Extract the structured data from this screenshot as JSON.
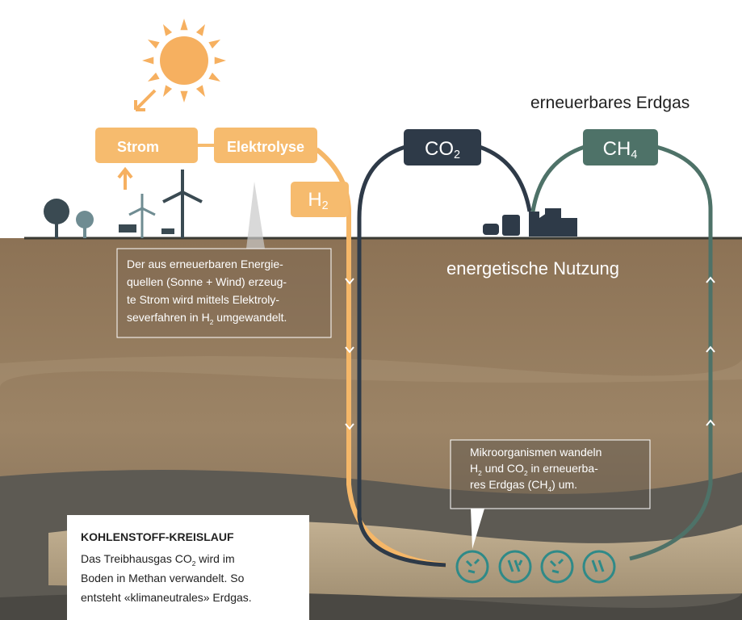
{
  "labels": {
    "strom": "Strom",
    "elektrolyse": "Elektrolyse",
    "h2": [
      "H",
      "2"
    ],
    "co2": [
      "CO",
      "2"
    ],
    "ch4": [
      "CH",
      "4"
    ],
    "erdgas": "erneuerbares Erdgas",
    "nutzung": "energetische Nutzung"
  },
  "callout_electrolysis": {
    "lines": [
      [
        "Der aus erneuerbaren Energie-"
      ],
      [
        "quellen (Sonne + Wind) erzeug-"
      ],
      [
        "te Strom wird mittels Elektroly-"
      ],
      [
        "severfahren in H",
        "2",
        " umgewandelt."
      ]
    ]
  },
  "callout_microbes": {
    "lines": [
      [
        "Mikroorganismen wandeln"
      ],
      [
        "H",
        "2",
        " und CO",
        "2",
        " in erneuerba-"
      ],
      [
        "res Erdgas (CH",
        "4",
        ") um."
      ]
    ]
  },
  "info_box": {
    "title": "KOHLENSTOFF-KREISLAUF",
    "lines": [
      [
        "Das Treibhausgas CO",
        "2",
        " wird im"
      ],
      [
        "Boden in Methan verwandelt. So"
      ],
      [
        "entsteht «klimaneutrales» Erdgas."
      ]
    ]
  }
}
